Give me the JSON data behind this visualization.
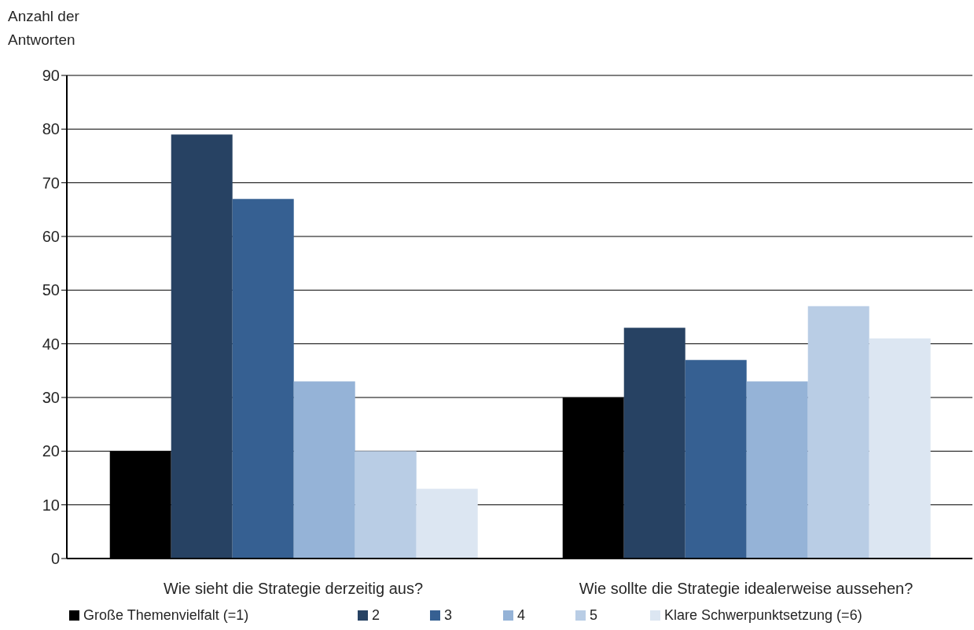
{
  "chart_data": {
    "type": "bar",
    "ylabel": "Anzahl der Antworten",
    "categories": [
      "Wie sieht die Strategie derzeitig aus?",
      "Wie sollte die Strategie idealerweise aussehen?"
    ],
    "series": [
      {
        "name": "Große Themenvielfalt (=1)",
        "color": "#000000",
        "values": [
          20,
          30
        ]
      },
      {
        "name": "2",
        "color": "#274263",
        "values": [
          79,
          43
        ]
      },
      {
        "name": "3",
        "color": "#366092",
        "values": [
          67,
          37
        ]
      },
      {
        "name": "4",
        "color": "#95b3d7",
        "values": [
          33,
          33
        ]
      },
      {
        "name": "5",
        "color": "#b9cde5",
        "values": [
          20,
          47
        ]
      },
      {
        "name": "Klare Schwerpunktsetzung (=6)",
        "color": "#dce6f2",
        "values": [
          13,
          41
        ]
      }
    ],
    "ylim": [
      0,
      90
    ],
    "yticks": [
      0,
      10,
      20,
      30,
      40,
      50,
      60,
      70,
      80,
      90
    ],
    "grid": "y",
    "legend": "bottom"
  }
}
